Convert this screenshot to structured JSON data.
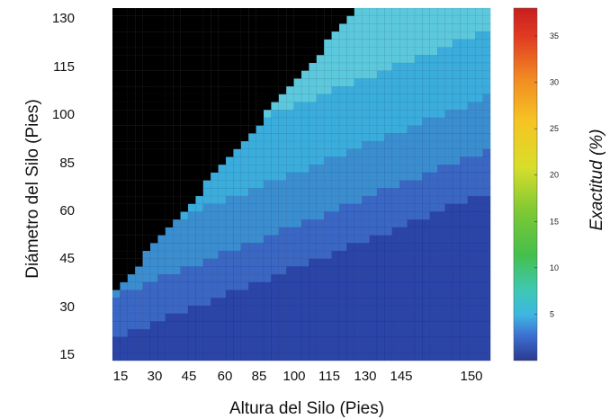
{
  "chart_data": {
    "type": "heatmap",
    "title": "",
    "xlabel": "Altura del Silo (Pies)",
    "ylabel": "Diámetro del Silo (Pies)",
    "x_ticks": [
      "15",
      "30",
      "45",
      "60",
      "85",
      "100",
      "115",
      "130",
      "145",
      "150"
    ],
    "y_ticks": [
      "15",
      "30",
      "45",
      "60",
      "85",
      "100",
      "115",
      "130"
    ],
    "colorbar": {
      "label": "Exactitud (%)",
      "ticks": [
        "5",
        "10",
        "15",
        "20",
        "25",
        "30",
        "35"
      ],
      "range": [
        0,
        38
      ],
      "colormap": "jet"
    },
    "grid": {
      "columns": 50,
      "rows": 45,
      "masked_color": "#000000",
      "masked_description": "black region where diameter exceeds feasible height",
      "value_levels_percent": [
        0.3,
        1.0,
        1.9,
        2.9,
        3.8
      ],
      "level_colors": [
        "#2a44a8",
        "#3a66c4",
        "#3a8ed0",
        "#3aaddc",
        "#5cc8dc"
      ]
    }
  }
}
